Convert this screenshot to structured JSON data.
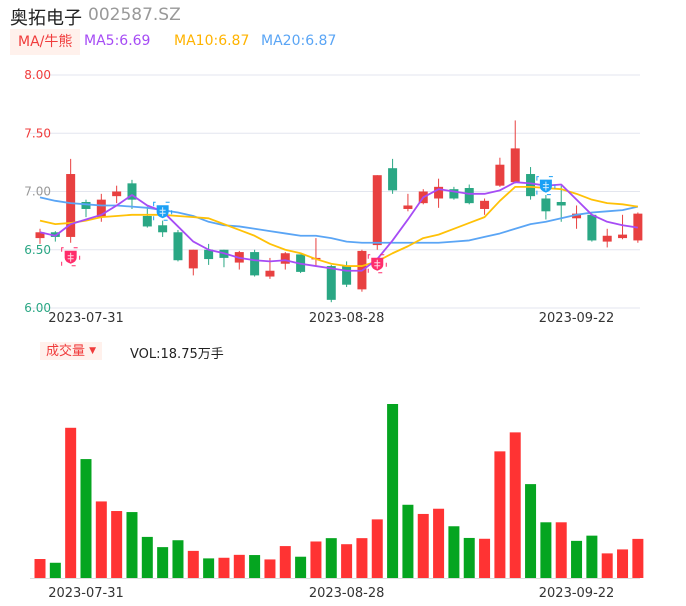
{
  "header": {
    "name": "奥拓电子",
    "code": "002587.SZ"
  },
  "ma_legend": {
    "button": "MA/牛熊",
    "ma5": "MA5:6.69",
    "ma10": "MA10:6.87",
    "ma20": "MA20:6.87"
  },
  "volume_legend": {
    "button": "成交量",
    "arrow": "▼",
    "value": "VOL:18.75万手"
  },
  "colors": {
    "up": "#e84040",
    "down": "#2aa784",
    "vol_up": "#ff3333",
    "vol_down": "#05a520",
    "ma5": "#a64cf5",
    "ma10": "#ffc107",
    "ma20": "#5aa5f5",
    "bull": "#ff2d6b",
    "bear": "#1aa0f5"
  },
  "chart_data": {
    "type": "candlestick",
    "ylim": [
      6.0,
      8.0
    ],
    "yticks": [
      "8.00",
      "7.50",
      "7.00",
      "6.50",
      "6.00"
    ],
    "xticks": [
      {
        "index": 3,
        "label": "2023-07-31"
      },
      {
        "index": 20,
        "label": "2023-08-28"
      },
      {
        "index": 35,
        "label": "2023-09-22"
      }
    ],
    "ohlc": [
      [
        6.6,
        6.68,
        6.55,
        6.65
      ],
      [
        6.65,
        6.66,
        6.57,
        6.61
      ],
      [
        6.61,
        7.28,
        6.56,
        7.15
      ],
      [
        6.91,
        6.93,
        6.78,
        6.85
      ],
      [
        6.78,
        6.98,
        6.74,
        6.93
      ],
      [
        6.96,
        7.05,
        6.9,
        7.0
      ],
      [
        7.07,
        7.1,
        6.85,
        6.93
      ],
      [
        6.79,
        6.87,
        6.69,
        6.7
      ],
      [
        6.71,
        6.75,
        6.61,
        6.65
      ],
      [
        6.65,
        6.67,
        6.4,
        6.41
      ],
      [
        6.34,
        6.5,
        6.28,
        6.5
      ],
      [
        6.5,
        6.55,
        6.37,
        6.42
      ],
      [
        6.5,
        6.5,
        6.35,
        6.43
      ],
      [
        6.39,
        6.49,
        6.33,
        6.48
      ],
      [
        6.48,
        6.5,
        6.27,
        6.28
      ],
      [
        6.27,
        6.43,
        6.25,
        6.32
      ],
      [
        6.38,
        6.48,
        6.33,
        6.47
      ],
      [
        6.46,
        6.46,
        6.3,
        6.31
      ],
      [
        6.42,
        6.6,
        6.36,
        6.43
      ],
      [
        6.36,
        6.37,
        6.05,
        6.07
      ],
      [
        6.36,
        6.4,
        6.18,
        6.2
      ],
      [
        6.16,
        6.5,
        6.14,
        6.49
      ],
      [
        6.54,
        7.14,
        6.5,
        7.14
      ],
      [
        7.2,
        7.28,
        6.98,
        7.01
      ],
      [
        6.85,
        6.98,
        6.83,
        6.88
      ],
      [
        6.9,
        7.02,
        6.89,
        7.0
      ],
      [
        6.94,
        7.11,
        6.86,
        7.04
      ],
      [
        7.02,
        7.04,
        6.93,
        6.94
      ],
      [
        7.03,
        7.06,
        6.89,
        6.9
      ],
      [
        6.85,
        6.94,
        6.8,
        6.92
      ],
      [
        7.05,
        7.29,
        7.04,
        7.23
      ],
      [
        7.08,
        7.61,
        7.07,
        7.37
      ],
      [
        7.15,
        7.21,
        6.93,
        6.96
      ],
      [
        6.94,
        6.97,
        6.76,
        6.83
      ],
      [
        6.91,
        7.05,
        6.74,
        6.88
      ],
      [
        6.77,
        6.88,
        6.68,
        6.81
      ],
      [
        6.8,
        6.81,
        6.57,
        6.58
      ],
      [
        6.57,
        6.68,
        6.52,
        6.62
      ],
      [
        6.6,
        6.8,
        6.59,
        6.63
      ],
      [
        6.58,
        6.82,
        6.56,
        6.81
      ]
    ],
    "ma5": [
      6.65,
      6.62,
      6.72,
      6.76,
      6.8,
      6.88,
      6.97,
      6.88,
      6.83,
      6.7,
      6.57,
      6.5,
      6.47,
      6.43,
      6.41,
      6.4,
      6.41,
      6.38,
      6.36,
      6.34,
      6.32,
      6.32,
      6.42,
      6.58,
      6.76,
      6.95,
      7.02,
      7.0,
      6.98,
      6.98,
      7.01,
      7.08,
      7.07,
      7.05,
      7.06,
      6.93,
      6.8,
      6.74,
      6.71,
      6.69
    ],
    "ma10": [
      6.75,
      6.72,
      6.73,
      6.75,
      6.78,
      6.79,
      6.8,
      6.8,
      6.8,
      6.79,
      6.78,
      6.77,
      6.72,
      6.67,
      6.62,
      6.55,
      6.5,
      6.47,
      6.42,
      6.38,
      6.36,
      6.36,
      6.4,
      6.47,
      6.53,
      6.6,
      6.63,
      6.68,
      6.73,
      6.78,
      6.92,
      7.04,
      7.04,
      7.03,
      7.02,
      6.98,
      6.93,
      6.9,
      6.89,
      6.87
    ],
    "ma20": [
      6.95,
      6.92,
      6.9,
      6.89,
      6.88,
      6.88,
      6.87,
      6.86,
      6.84,
      6.82,
      6.79,
      6.74,
      6.71,
      6.7,
      6.68,
      6.66,
      6.64,
      6.62,
      6.62,
      6.6,
      6.57,
      6.56,
      6.56,
      6.56,
      6.56,
      6.56,
      6.56,
      6.57,
      6.58,
      6.61,
      6.64,
      6.68,
      6.72,
      6.74,
      6.77,
      6.8,
      6.82,
      6.83,
      6.84,
      6.87
    ],
    "signals": [
      {
        "index": 2,
        "type": "bull"
      },
      {
        "index": 8,
        "type": "bear"
      },
      {
        "index": 22,
        "type": "bull"
      },
      {
        "index": 33,
        "type": "bear"
      }
    ],
    "volume_unit": "万手",
    "volume": [
      9.1,
      7.3,
      72.0,
      57.0,
      36.7,
      32.1,
      31.6,
      19.7,
      14.8,
      18.1,
      13.0,
      9.4,
      9.7,
      11.1,
      11.0,
      8.9,
      15.3,
      10.2,
      17.5,
      19.1,
      16.2,
      19.1,
      28.1,
      83.4,
      35.1,
      30.7,
      33.2,
      24.8,
      19.2,
      18.8,
      60.7,
      69.8,
      45.0,
      26.7,
      26.7,
      17.8,
      20.3,
      11.8,
      13.7,
      18.75
    ],
    "volume_up": [
      1,
      0,
      1,
      0,
      1,
      1,
      0,
      0,
      0,
      0,
      1,
      0,
      1,
      1,
      0,
      1,
      1,
      0,
      1,
      0,
      1,
      1,
      1,
      0,
      0,
      1,
      1,
      0,
      0,
      1,
      1,
      1,
      0,
      0,
      1,
      0,
      0,
      1,
      1,
      1
    ]
  }
}
